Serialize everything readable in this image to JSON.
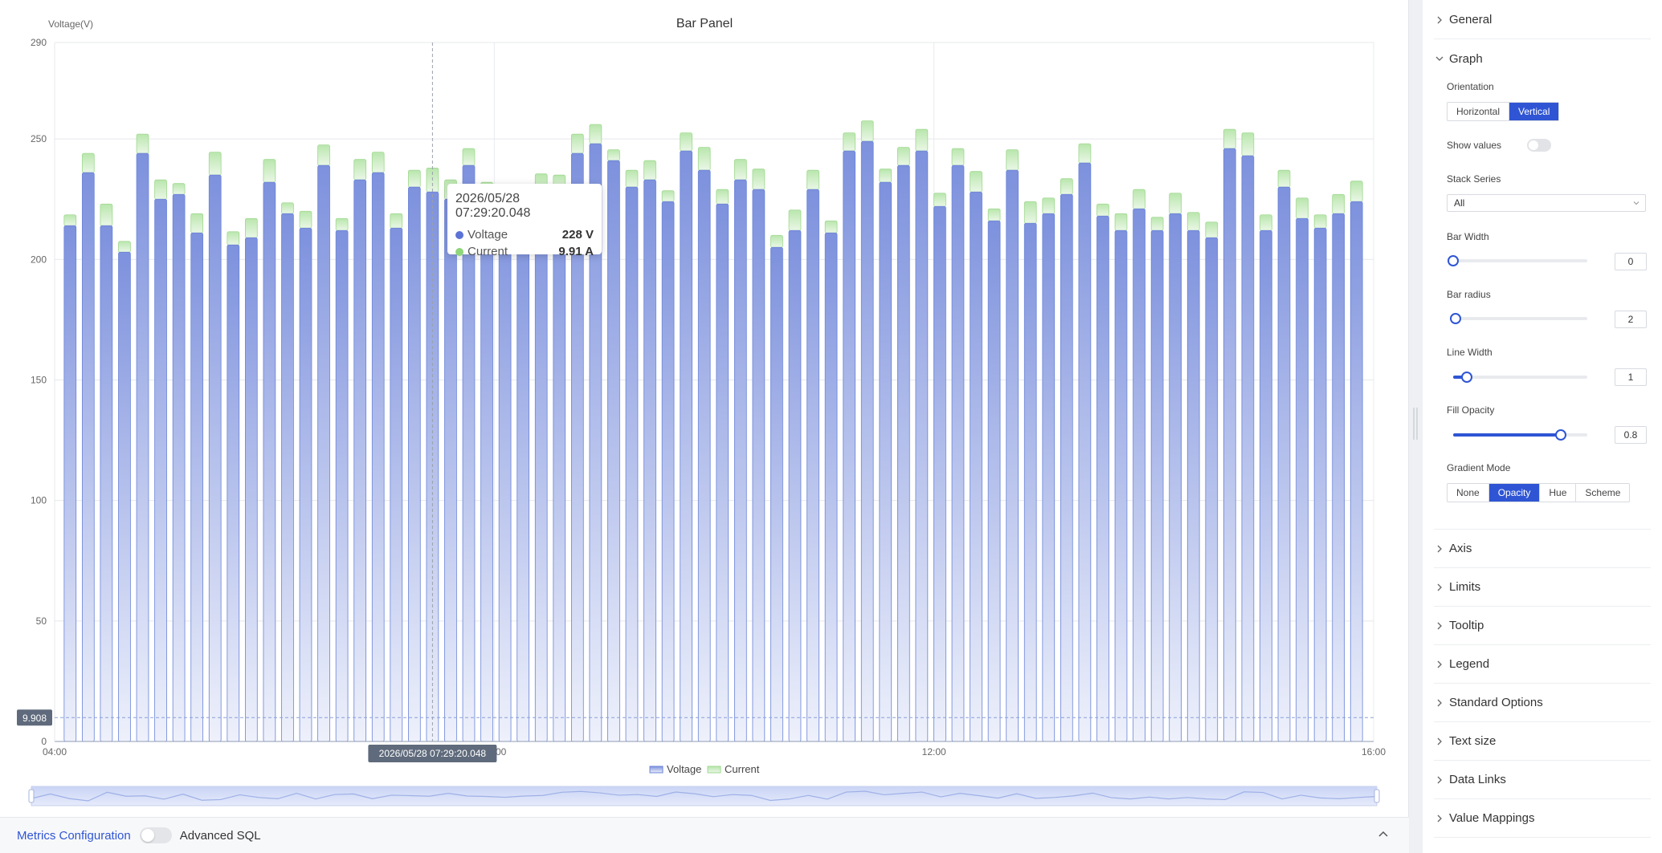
{
  "chart_data": {
    "type": "bar",
    "title": "Bar Panel",
    "ylabel": "Voltage(V)",
    "ylim": [
      0,
      290
    ],
    "yticks": [
      0,
      50,
      100,
      150,
      200,
      250,
      290
    ],
    "xticks": [
      "04:00",
      "08:00",
      "12:00",
      "16:00"
    ],
    "x_range": [
      "04:00",
      "16:00"
    ],
    "stacked": true,
    "grid": true,
    "legend_position": "bottom",
    "series": [
      {
        "name": "Voltage",
        "color": "#6b84d8",
        "values": [
          214,
          236,
          214,
          203,
          244,
          225,
          227,
          211,
          235,
          206,
          209,
          232,
          219,
          213,
          239,
          212,
          233,
          236,
          213,
          230,
          228,
          225,
          239,
          226,
          224,
          220,
          226,
          229,
          244,
          248,
          241,
          230,
          233,
          224,
          245,
          237,
          223,
          233,
          229,
          205,
          212,
          229,
          211,
          245,
          249,
          232,
          239,
          245,
          222,
          239,
          228,
          216,
          237,
          215,
          219,
          227,
          240,
          218,
          212,
          221,
          212,
          219,
          212,
          209,
          246,
          243,
          212,
          230,
          217,
          213,
          219,
          224
        ]
      },
      {
        "name": "Current",
        "color": "#9fd88f",
        "values": [
          4.5,
          8.0,
          9.0,
          4.5,
          8.0,
          8.0,
          4.5,
          8.0,
          9.5,
          5.5,
          8.0,
          9.5,
          4.5,
          7.0,
          8.5,
          5.0,
          8.5,
          8.5,
          6.0,
          7.0,
          9.91,
          8.0,
          7.0,
          6.0,
          6.0,
          7.5,
          9.5,
          6.0,
          8.0,
          8.0,
          4.5,
          7.0,
          8.0,
          4.5,
          7.5,
          9.5,
          6.0,
          8.5,
          8.5,
          5.0,
          8.5,
          8.0,
          5.0,
          7.5,
          8.5,
          5.5,
          7.5,
          9.0,
          5.5,
          7.0,
          8.5,
          5.0,
          8.5,
          9.0,
          6.5,
          6.5,
          8.0,
          5.0,
          7.0,
          8.0,
          5.5,
          8.5,
          7.5,
          6.5,
          8.0,
          9.5,
          6.5,
          7.0,
          8.5,
          5.5,
          8.0,
          8.5
        ]
      }
    ],
    "crosshair": {
      "time_label": "2026/05/28 07:29:20.048",
      "y_label": "9.908",
      "y_value": 9.908
    },
    "tooltip": {
      "title": "2026/05/28 07:29:20.048",
      "rows": [
        {
          "name": "Voltage",
          "value": "228 V",
          "color": "#5b73d6"
        },
        {
          "name": "Current",
          "value": "9.91 A",
          "color": "#8fd67a"
        }
      ]
    }
  },
  "bottom_bar": {
    "metrics_label": "Metrics Configuration",
    "advanced_label": "Advanced SQL"
  },
  "settings": {
    "general": "General",
    "graph": "Graph",
    "orientation_label": "Orientation",
    "orientation_options": [
      "Horizontal",
      "Vertical"
    ],
    "orientation_selected": "Vertical",
    "show_values_label": "Show values",
    "stack_series_label": "Stack Series",
    "stack_series_value": "All",
    "bar_width_label": "Bar Width",
    "bar_width_value": "0",
    "bar_width_level": 0,
    "bar_radius_label": "Bar radius",
    "bar_radius_value": "2",
    "bar_radius_level": 0.02,
    "line_width_label": "Line Width",
    "line_width_value": "1",
    "line_width_level": 0.1,
    "fill_opacity_label": "Fill Opacity",
    "fill_opacity_value": "0.8",
    "fill_opacity_level": 0.8,
    "gradient_mode_label": "Gradient Mode",
    "gradient_options": [
      "None",
      "Opacity",
      "Hue",
      "Scheme"
    ],
    "gradient_selected": "Opacity",
    "sections": [
      "Axis",
      "Limits",
      "Tooltip",
      "Legend",
      "Standard Options",
      "Text size",
      "Data Links",
      "Value Mappings"
    ],
    "accent_color": "#2f55d4"
  }
}
